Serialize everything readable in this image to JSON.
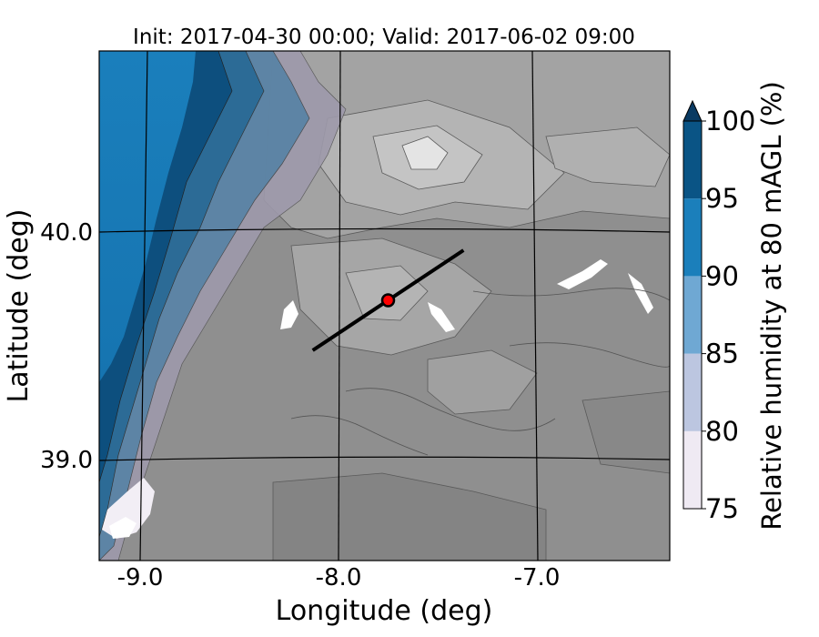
{
  "title": "Init: 2017-04-30 00:00; Valid: 2017-06-02 09:00",
  "axes": {
    "xlabel": "Longitude (deg)",
    "ylabel": "Latitude (deg)",
    "xticks": [
      {
        "value": -9.0,
        "label": "-9.0"
      },
      {
        "value": -8.0,
        "label": "-8.0"
      },
      {
        "value": -7.0,
        "label": "-7.0"
      }
    ],
    "yticks": [
      {
        "value": 40.0,
        "label": "40.0"
      },
      {
        "value": 39.0,
        "label": "39.0"
      }
    ]
  },
  "colorbar": {
    "label": "Relative humidity at 80 mAGL (%)",
    "levels": [
      {
        "value": 100,
        "label": "100"
      },
      {
        "value": 95,
        "label": "95"
      },
      {
        "value": 90,
        "label": "90"
      },
      {
        "value": 85,
        "label": "85"
      },
      {
        "value": 80,
        "label": "80"
      },
      {
        "value": 75,
        "label": "75"
      }
    ],
    "bands": [
      {
        "from": 75,
        "to": 80,
        "color": "#efeaf3"
      },
      {
        "from": 80,
        "to": 85,
        "color": "#bcc6e0"
      },
      {
        "from": 85,
        "to": 90,
        "color": "#6fa8d3"
      },
      {
        "from": 90,
        "to": 95,
        "color": "#1b7fbb"
      },
      {
        "from": 95,
        "to": 100,
        "color": "#0a5485"
      },
      {
        "from": 100,
        "to": 101,
        "color": "#0a3a62"
      }
    ]
  },
  "map": {
    "terrain_shading": "grey terrain contours",
    "cross_section_line": {
      "start": {
        "lon": -8.13,
        "lat": 39.48
      },
      "end": {
        "lon": -7.37,
        "lat": 39.92
      }
    },
    "point_marker": {
      "lon": -7.75,
      "lat": 39.7,
      "color": "#ff0000"
    }
  }
}
